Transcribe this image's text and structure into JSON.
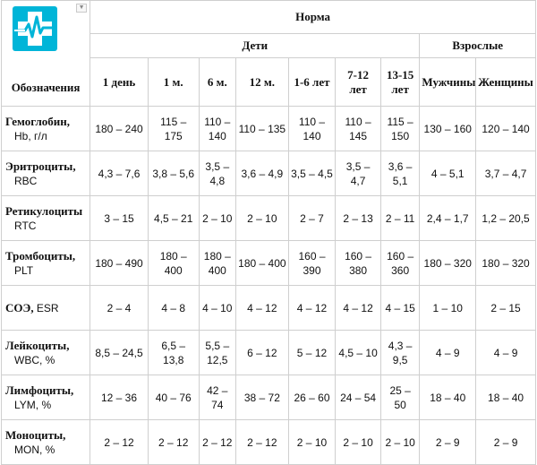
{
  "header": {
    "corner_label": "Обозначения",
    "norm": "Норма",
    "children": "Дети",
    "adults": "Взрослые",
    "columns": [
      "1 день",
      "1 м.",
      "6 м.",
      "12 м.",
      "1-6 лет",
      "7-12 лет",
      "13-15 лет",
      "Мужчины",
      "Женщины"
    ]
  },
  "rows": [
    {
      "name": "Гемоглобин,",
      "abbr": "Hb, г/л",
      "values": [
        "180 – 240",
        "115 – 175",
        "110 – 140",
        "110 – 135",
        "110 – 140",
        "110 – 145",
        "115 – 150",
        "130 – 160",
        "120 – 140"
      ]
    },
    {
      "name": "Эритроциты,",
      "abbr": "RBC",
      "values": [
        "4,3 – 7,6",
        "3,8 – 5,6",
        "3,5 – 4,8",
        "3,6 – 4,9",
        "3,5 – 4,5",
        "3,5 – 4,7",
        "3,6 – 5,1",
        "4 – 5,1",
        "3,7 – 4,7"
      ]
    },
    {
      "name": "Ретикулоциты",
      "abbr": "RTC",
      "values": [
        "3 – 15",
        "4,5 – 21",
        "2 – 10",
        "2 – 10",
        "2 – 7",
        "2 – 13",
        "2 – 11",
        "2,4 – 1,7",
        "1,2 – 20,5"
      ]
    },
    {
      "name": "Тромбоциты,",
      "abbr": "PLT",
      "values": [
        "180 – 490",
        "180 – 400",
        "180 – 400",
        "180 – 400",
        "160 – 390",
        "160 – 380",
        "160 – 360",
        "180 – 320",
        "180 – 320"
      ]
    },
    {
      "name": "СОЭ,",
      "abbr": "ESR",
      "values": [
        "2 – 4",
        "4 – 8",
        "4 – 10",
        "4 – 12",
        "4 – 12",
        "4 – 12",
        "4 – 15",
        "1 – 10",
        "2 – 15"
      ]
    },
    {
      "name": "Лейкоциты,",
      "abbr": "WBC, %",
      "values": [
        "8,5 – 24,5",
        "6,5 – 13,8",
        "5,5 – 12,5",
        "6 – 12",
        "5 – 12",
        "4,5 – 10",
        "4,3 – 9,5",
        "4 – 9",
        "4 – 9"
      ]
    },
    {
      "name": "Лимфоциты,",
      "abbr": "LYM, %",
      "values": [
        "12 – 36",
        "40 – 76",
        "42 – 74",
        "38 – 72",
        "26 – 60",
        "24 – 54",
        "25 – 50",
        "18 – 40",
        "18 – 40"
      ]
    },
    {
      "name": "Моноциты,",
      "abbr": "MON, %",
      "values": [
        "2 – 12",
        "2 – 12",
        "2 – 12",
        "2 – 12",
        "2 – 10",
        "2 – 10",
        "2 – 10",
        "2 – 9",
        "2 – 9"
      ]
    }
  ],
  "colors": {
    "logo": "#00b5d8",
    "border": "#cfcfcf"
  },
  "icons": {
    "logo": "medical-cross-heartbeat-icon"
  }
}
